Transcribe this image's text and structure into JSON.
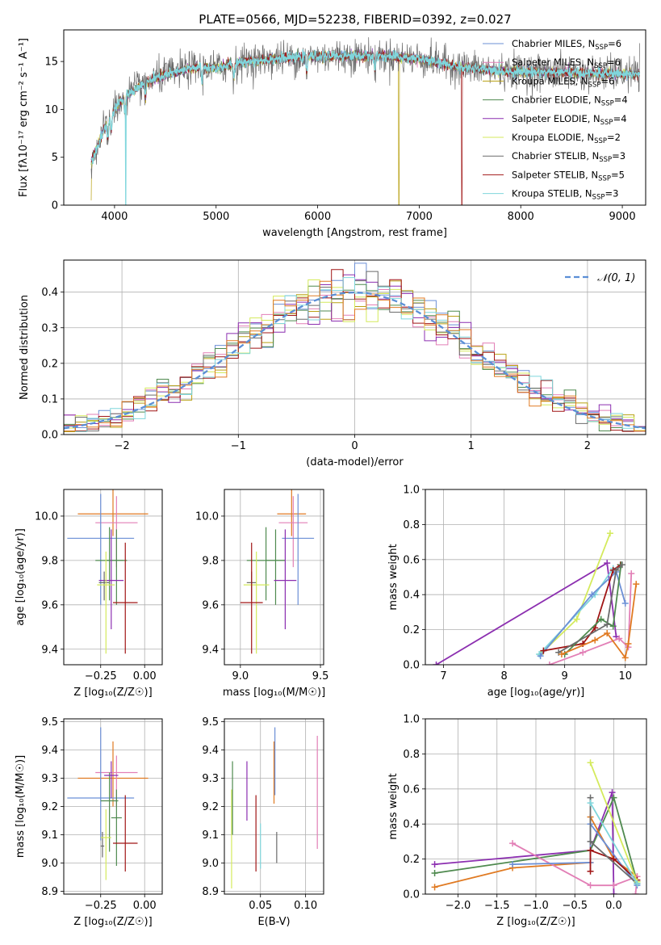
{
  "figure": {
    "title": "PLATE=0566, MJD=52238, FIBERID=0392, z=0.027"
  },
  "colors": {
    "chabrier_miles": "#6b8fd6",
    "salpeter_miles": "#e27fb6",
    "kroupa_miles": "#b8a012",
    "chabrier_elodie": "#4f8a4f",
    "salpeter_elodie": "#8c2fb0",
    "kroupa_elodie": "#d4ea5c",
    "chabrier_stelib": "#6b6b6b",
    "salpeter_stelib": "#a01515",
    "kroupa_stelib": "#7fd6dc",
    "orange": "#e07a22"
  },
  "chart_data": [
    {
      "id": "spectrum",
      "type": "line",
      "xlabel": "wavelength [Angstrom, rest frame]",
      "ylabel": "Flux [fλ10⁻¹⁷ erg cm⁻² s⁻¹ A⁻¹]",
      "xlim": [
        3500,
        9230
      ],
      "ylim": [
        0,
        18.3
      ],
      "xticks": [
        "4000",
        "5000",
        "6000",
        "7000",
        "8000",
        "9000"
      ],
      "xtick_values": [
        4000,
        5000,
        6000,
        7000,
        8000,
        9000
      ],
      "yticks": [
        "0",
        "5",
        "10",
        "15"
      ],
      "ytick_values": [
        0,
        5,
        10,
        15
      ],
      "grid": false,
      "legend_position": "top-right",
      "continuum_x": [
        3770,
        3900,
        4000,
        4100,
        4300,
        4500,
        4800,
        5000,
        5300,
        5600,
        5900,
        6200,
        6600,
        7000,
        7400,
        7800,
        8200,
        8600,
        9000,
        9170
      ],
      "continuum_y": [
        4.5,
        8.0,
        10.0,
        11.3,
        12.8,
        13.6,
        14.4,
        14.3,
        15.0,
        15.3,
        15.5,
        15.6,
        15.6,
        15.3,
        14.4,
        14.0,
        13.9,
        13.8,
        13.7,
        13.7
      ],
      "series": [
        {
          "label": "Chabrier MILES, N",
          "sub": "SSP",
          "count": "=6",
          "color_key": "chabrier_miles"
        },
        {
          "label": "Salpeter MILES, N",
          "sub": "SSP",
          "count": "=6",
          "color_key": "salpeter_miles"
        },
        {
          "label": "Kroupa MILES, N",
          "sub": "SSP",
          "count": "=6",
          "color_key": "kroupa_miles",
          "drop_at": 6800
        },
        {
          "label": "Chabrier ELODIE, N",
          "sub": "SSP",
          "count": "=4",
          "color_key": "chabrier_elodie"
        },
        {
          "label": "Salpeter ELODIE, N",
          "sub": "SSP",
          "count": "=4",
          "color_key": "salpeter_elodie"
        },
        {
          "label": "Kroupa ELODIE, N",
          "sub": "SSP",
          "count": "=2",
          "color_key": "kroupa_elodie"
        },
        {
          "label": "Chabrier STELIB, N",
          "sub": "SSP",
          "count": "=3",
          "color_key": "chabrier_stelib"
        },
        {
          "label": "Salpeter STELIB, N",
          "sub": "SSP",
          "count": "=5",
          "color_key": "salpeter_stelib",
          "drop_at": 7420
        },
        {
          "label": "Kroupa STELIB, N",
          "sub": "SSP",
          "count": "=3",
          "color_key": "kroupa_stelib",
          "drop_at": 4110
        }
      ]
    },
    {
      "id": "residuals",
      "type": "line",
      "xlabel": "(data-model)/error",
      "ylabel": "Normed distribution",
      "xlim": [
        -2.5,
        2.5
      ],
      "ylim": [
        0,
        0.49
      ],
      "xticks": [
        "−2",
        "−1",
        "0",
        "1",
        "2"
      ],
      "xtick_values": [
        -2,
        -1,
        0,
        1,
        2
      ],
      "yticks": [
        "0.0",
        "0.1",
        "0.2",
        "0.3",
        "0.4"
      ],
      "ytick_values": [
        0,
        0.1,
        0.2,
        0.3,
        0.4
      ],
      "grid": true,
      "legend_position": "top-right",
      "legend": "𝒩(0, 1)",
      "bin_width": 0.1
    },
    {
      "id": "age-vs-z",
      "type": "scatter",
      "xlabel": "Z [log₁₀(Z/Z☉)]",
      "ylabel": "age  [log₁₀(age/yr)]",
      "xlim": [
        -0.46,
        0.1
      ],
      "ylim": [
        9.33,
        10.12
      ],
      "xticks": [
        "−0.25",
        "0.00"
      ],
      "xtick_values": [
        -0.25,
        0
      ],
      "yticks": [
        "9.4",
        "9.6",
        "9.8",
        "10.0"
      ],
      "ytick_values": [
        9.4,
        9.6,
        9.8,
        10.0
      ],
      "grid": true,
      "points": [
        {
          "x": -0.18,
          "y": 10.01,
          "xerr": 0.2,
          "yerr_lo": 0.1,
          "yerr_hi": 0.12,
          "color_key": "orange"
        },
        {
          "x": -0.16,
          "y": 9.97,
          "xerr": 0.12,
          "yerr_lo": 0.2,
          "yerr_hi": 0.12,
          "color_key": "salpeter_miles"
        },
        {
          "x": -0.25,
          "y": 9.9,
          "xerr": 0.19,
          "yerr_lo": 0.3,
          "yerr_hi": 0.2,
          "color_key": "chabrier_miles"
        },
        {
          "x": -0.2,
          "y": 9.8,
          "xerr": 0.08,
          "yerr_lo": 0.18,
          "yerr_hi": 0.15,
          "color_key": "chabrier_elodie"
        },
        {
          "x": -0.16,
          "y": 9.8,
          "xerr": 0.06,
          "yerr_lo": 0.2,
          "yerr_hi": 0.14,
          "color_key": "chabrier_elodie"
        },
        {
          "x": -0.19,
          "y": 9.71,
          "xerr": 0.07,
          "yerr_lo": 0.22,
          "yerr_hi": 0.23,
          "color_key": "salpeter_elodie"
        },
        {
          "x": -0.23,
          "y": 9.7,
          "xerr": 0.03,
          "yerr_lo": 0.08,
          "yerr_hi": 0.05,
          "color_key": "chabrier_stelib"
        },
        {
          "x": -0.22,
          "y": 9.69,
          "xerr": 0.05,
          "yerr_lo": 0.31,
          "yerr_hi": 0.15,
          "color_key": "kroupa_elodie"
        },
        {
          "x": -0.11,
          "y": 9.61,
          "xerr": 0.07,
          "yerr_lo": 0.23,
          "yerr_hi": 0.27,
          "color_key": "salpeter_stelib"
        }
      ]
    },
    {
      "id": "age-vs-mass",
      "type": "scatter",
      "xlabel": "mass [log₁₀(M/M☉)]",
      "ylabel": "",
      "xlim": [
        8.9,
        9.52
      ],
      "ylim": [
        9.33,
        10.12
      ],
      "xticks": [
        "9.0",
        "9.5"
      ],
      "xtick_values": [
        9.0,
        9.5
      ],
      "yticks": [
        "9.4",
        "9.6",
        "9.8",
        "10.0"
      ],
      "ytick_values": [
        9.4,
        9.6,
        9.8,
        10.0
      ],
      "grid": true,
      "points": [
        {
          "x": 9.32,
          "y": 10.01,
          "xerr": 0.09,
          "yerr_lo": 0.1,
          "yerr_hi": 0.12,
          "color_key": "orange"
        },
        {
          "x": 9.33,
          "y": 9.97,
          "xerr": 0.09,
          "yerr_lo": 0.2,
          "yerr_hi": 0.12,
          "color_key": "salpeter_miles"
        },
        {
          "x": 9.36,
          "y": 9.9,
          "xerr": 0.1,
          "yerr_lo": 0.3,
          "yerr_hi": 0.2,
          "color_key": "chabrier_miles"
        },
        {
          "x": 9.16,
          "y": 9.8,
          "xerr": 0.12,
          "yerr_lo": 0.18,
          "yerr_hi": 0.15,
          "color_key": "chabrier_elodie"
        },
        {
          "x": 9.22,
          "y": 9.8,
          "xerr": 0.06,
          "yerr_lo": 0.2,
          "yerr_hi": 0.14,
          "color_key": "chabrier_elodie"
        },
        {
          "x": 9.28,
          "y": 9.71,
          "xerr": 0.07,
          "yerr_lo": 0.22,
          "yerr_hi": 0.23,
          "color_key": "salpeter_elodie"
        },
        {
          "x": 9.07,
          "y": 9.7,
          "xerr": 0.03,
          "yerr_lo": 0.08,
          "yerr_hi": 0.05,
          "color_key": "chabrier_stelib"
        },
        {
          "x": 9.1,
          "y": 9.69,
          "xerr": 0.08,
          "yerr_lo": 0.31,
          "yerr_hi": 0.15,
          "color_key": "kroupa_elodie"
        },
        {
          "x": 9.07,
          "y": 9.61,
          "xerr": 0.07,
          "yerr_lo": 0.23,
          "yerr_hi": 0.27,
          "color_key": "salpeter_stelib"
        }
      ]
    },
    {
      "id": "weight-vs-age",
      "type": "line",
      "xlabel": "age  [log₁₀(age/yr)]",
      "ylabel": "mass weight",
      "xlim": [
        6.7,
        10.35
      ],
      "ylim": [
        0,
        1.0
      ],
      "xticks": [
        "7",
        "8",
        "9",
        "10"
      ],
      "xtick_values": [
        7,
        8,
        9,
        10
      ],
      "yticks": [
        "0.0",
        "0.2",
        "0.4",
        "0.6",
        "0.8",
        "1.0"
      ],
      "ytick_values": [
        0,
        0.2,
        0.4,
        0.6,
        0.8,
        1.0
      ],
      "grid": true,
      "series": [
        {
          "color_key": "salpeter_elodie",
          "x": [
            6.88,
            9.7,
            9.85
          ],
          "y": [
            0.0,
            0.58,
            0.16
          ]
        },
        {
          "color_key": "kroupa_elodie",
          "x": [
            8.6,
            9.2,
            9.75
          ],
          "y": [
            0.06,
            0.26,
            0.75
          ]
        },
        {
          "color_key": "kroupa_stelib",
          "x": [
            8.58,
            9.5,
            9.8
          ],
          "y": [
            0.06,
            0.4,
            0.55
          ]
        },
        {
          "color_key": "chabrier_miles",
          "x": [
            8.6,
            9.45,
            9.85,
            10.0
          ],
          "y": [
            0.05,
            0.4,
            0.53,
            0.35
          ]
        },
        {
          "color_key": "salpeter_stelib",
          "x": [
            8.65,
            9.3,
            9.5,
            9.8,
            9.92
          ],
          "y": [
            0.08,
            0.12,
            0.21,
            0.54,
            0.57
          ]
        },
        {
          "color_key": "chabrier_elodie",
          "x": [
            9.0,
            9.6,
            9.8,
            9.93
          ],
          "y": [
            0.06,
            0.26,
            0.22,
            0.57
          ]
        },
        {
          "color_key": "chabrier_stelib",
          "x": [
            8.9,
            9.7,
            9.85,
            9.95
          ],
          "y": [
            0.07,
            0.23,
            0.54,
            0.57
          ]
        },
        {
          "color_key": "salpeter_miles",
          "x": [
            8.75,
            9.3,
            9.9,
            10.05,
            10.1
          ],
          "y": [
            0.0,
            0.07,
            0.15,
            0.1,
            0.52
          ]
        },
        {
          "color_key": "orange",
          "x": [
            8.95,
            9.5,
            9.7,
            10.0,
            10.05,
            10.18
          ],
          "y": [
            0.06,
            0.14,
            0.18,
            0.04,
            0.12,
            0.46
          ]
        }
      ]
    },
    {
      "id": "mass-vs-z",
      "type": "scatter",
      "xlabel": "Z [log₁₀(Z/Z☉)]",
      "ylabel": "mass [log₁₀(M/M☉)]",
      "xlim": [
        -0.46,
        0.1
      ],
      "ylim": [
        8.89,
        9.51
      ],
      "xticks": [
        "−0.25",
        "0.00"
      ],
      "xtick_values": [
        -0.25,
        0
      ],
      "yticks": [
        "8.9",
        "9.0",
        "9.1",
        "9.2",
        "9.3",
        "9.4",
        "9.5"
      ],
      "ytick_values": [
        8.9,
        9.0,
        9.1,
        9.2,
        9.3,
        9.4,
        9.5
      ],
      "grid": true,
      "points": [
        {
          "x": -0.18,
          "y": 9.3,
          "xerr": 0.2,
          "yerr_lo": 0.1,
          "yerr_hi": 0.13,
          "color_key": "orange"
        },
        {
          "x": -0.16,
          "y": 9.32,
          "xerr": 0.12,
          "yerr_lo": 0.12,
          "yerr_hi": 0.06,
          "color_key": "salpeter_miles"
        },
        {
          "x": -0.25,
          "y": 9.23,
          "xerr": 0.19,
          "yerr_lo": 0.15,
          "yerr_hi": 0.25,
          "color_key": "chabrier_miles"
        },
        {
          "x": -0.2,
          "y": 9.22,
          "xerr": 0.05,
          "yerr_lo": 0.18,
          "yerr_hi": 0.1,
          "color_key": "chabrier_elodie"
        },
        {
          "x": -0.16,
          "y": 9.16,
          "xerr": 0.03,
          "yerr_lo": 0.17,
          "yerr_hi": 0.1,
          "color_key": "chabrier_elodie"
        },
        {
          "x": -0.19,
          "y": 9.31,
          "xerr": 0.04,
          "yerr_lo": 0.08,
          "yerr_hi": 0.05,
          "color_key": "salpeter_elodie"
        },
        {
          "x": -0.24,
          "y": 9.06,
          "xerr": 0.01,
          "yerr_lo": 0.04,
          "yerr_hi": 0.05,
          "color_key": "chabrier_stelib"
        },
        {
          "x": -0.22,
          "y": 9.09,
          "xerr": 0.03,
          "yerr_lo": 0.15,
          "yerr_hi": 0.1,
          "color_key": "kroupa_elodie"
        },
        {
          "x": -0.11,
          "y": 9.07,
          "xerr": 0.07,
          "yerr_lo": 0.1,
          "yerr_hi": 0.17,
          "color_key": "salpeter_stelib"
        }
      ]
    },
    {
      "id": "mass-vs-ebv",
      "type": "scatter",
      "xlabel": "E(B-V)",
      "ylabel": "",
      "xlim": [
        0.01,
        0.12
      ],
      "ylim": [
        8.89,
        9.51
      ],
      "xticks": [
        "0.05",
        "0.10"
      ],
      "xtick_values": [
        0.05,
        0.1
      ],
      "yticks": [
        "8.9",
        "9.0",
        "9.1",
        "9.2",
        "9.3",
        "9.4",
        "9.5"
      ],
      "ytick_values": [
        8.9,
        9.0,
        9.1,
        9.2,
        9.3,
        9.4,
        9.5
      ],
      "grid": true,
      "points": [
        {
          "x": 0.018,
          "y": 9.12,
          "yerr_lo": 0.21,
          "yerr_hi": 0.14,
          "color_key": "kroupa_elodie"
        },
        {
          "x": 0.019,
          "y": 9.2,
          "yerr_lo": 0.1,
          "yerr_hi": 0.16,
          "color_key": "chabrier_elodie"
        },
        {
          "x": 0.035,
          "y": 9.25,
          "yerr_lo": 0.1,
          "yerr_hi": 0.11,
          "color_key": "salpeter_elodie"
        },
        {
          "x": 0.045,
          "y": 9.1,
          "yerr_lo": 0.13,
          "yerr_hi": 0.14,
          "color_key": "salpeter_stelib"
        },
        {
          "x": 0.05,
          "y": 9.05,
          "yerr_lo": 0.07,
          "yerr_hi": 0.09,
          "color_key": "kroupa_stelib"
        },
        {
          "x": 0.065,
          "y": 9.33,
          "yerr_lo": 0.12,
          "yerr_hi": 0.1,
          "color_key": "orange"
        },
        {
          "x": 0.066,
          "y": 9.36,
          "yerr_lo": 0.12,
          "yerr_hi": 0.12,
          "color_key": "chabrier_miles"
        },
        {
          "x": 0.068,
          "y": 9.05,
          "yerr_lo": 0.05,
          "yerr_hi": 0.06,
          "color_key": "chabrier_stelib"
        },
        {
          "x": 0.113,
          "y": 9.25,
          "yerr_lo": 0.2,
          "yerr_hi": 0.2,
          "color_key": "salpeter_miles"
        }
      ]
    },
    {
      "id": "weight-vs-z",
      "type": "line",
      "xlabel": "Z [log₁₀(Z/Z☉)]",
      "ylabel": "mass weight",
      "xlim": [
        -2.42,
        0.42
      ],
      "ylim": [
        0,
        1.0
      ],
      "xticks": [
        "−2.0",
        "−1.5",
        "−1.0",
        "−0.5",
        "0.0"
      ],
      "xtick_values": [
        -2.0,
        -1.5,
        -1.0,
        -0.5,
        0.0
      ],
      "yticks": [
        "0.0",
        "0.2",
        "0.4",
        "0.6",
        "0.8",
        "1.0"
      ],
      "ytick_values": [
        0,
        0.2,
        0.4,
        0.6,
        0.8,
        1.0
      ],
      "grid": true,
      "series": [
        {
          "color_key": "salpeter_elodie",
          "x": [
            -2.3,
            -0.3,
            -0.02,
            0.0
          ],
          "y": [
            0.17,
            0.25,
            0.58,
            0.0
          ]
        },
        {
          "color_key": "chabrier_elodie",
          "x": [
            -2.3,
            -0.3,
            0.0,
            0.3
          ],
          "y": [
            0.12,
            0.25,
            0.55,
            0.07
          ]
        },
        {
          "color_key": "orange",
          "x": [
            -2.3,
            -1.3,
            -0.3,
            -0.3,
            0.0,
            0.3
          ],
          "y": [
            0.04,
            0.15,
            0.18,
            0.44,
            0.2,
            0.1
          ]
        },
        {
          "color_key": "salpeter_miles",
          "x": [
            -1.3,
            -0.3,
            0.0,
            0.3,
            0.28
          ],
          "y": [
            0.29,
            0.05,
            0.05,
            0.1,
            0.0
          ]
        },
        {
          "color_key": "chabrier_miles",
          "x": [
            -1.3,
            -0.3,
            -0.3,
            0.3
          ],
          "y": [
            0.17,
            0.18,
            0.4,
            0.05
          ]
        },
        {
          "color_key": "salpeter_stelib",
          "x": [
            -0.3,
            -0.3,
            0.0,
            0.3
          ],
          "y": [
            0.13,
            0.25,
            0.2,
            0.08
          ]
        },
        {
          "color_key": "chabrier_stelib",
          "x": [
            -0.3,
            -0.3,
            0.3
          ],
          "y": [
            0.55,
            0.3,
            0.06
          ]
        },
        {
          "color_key": "kroupa_elodie",
          "x": [
            -0.3,
            0.3
          ],
          "y": [
            0.75,
            0.07
          ]
        },
        {
          "color_key": "kroupa_stelib",
          "x": [
            -0.3,
            0.3
          ],
          "y": [
            0.52,
            0.06
          ]
        }
      ]
    }
  ]
}
